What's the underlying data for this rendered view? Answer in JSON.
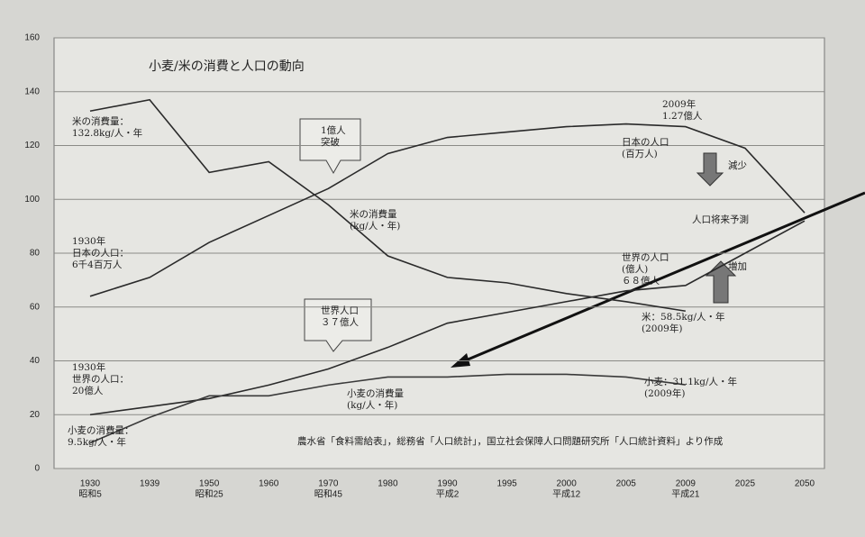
{
  "chart_data": {
    "type": "line",
    "title": "小麦/米の消費と人口の動向",
    "categories": [
      "1930",
      "1939",
      "1950",
      "1960",
      "1970",
      "1980",
      "1990",
      "1995",
      "2000",
      "2005",
      "2009",
      "2025",
      "2050"
    ],
    "category_sublabels": [
      "昭和5",
      null,
      "昭和25",
      null,
      "昭和45",
      null,
      "平成2",
      null,
      "平成12",
      null,
      "平成21",
      null,
      null
    ],
    "ylim": [
      0,
      160
    ],
    "yticks": [
      0,
      20,
      40,
      60,
      80,
      100,
      120,
      140,
      160
    ],
    "grid": true,
    "series": [
      {
        "color": "#2a2a2a",
        "values": [
          132.8,
          137,
          110,
          114,
          98,
          79,
          71,
          69,
          65,
          62,
          58.5,
          null,
          null
        ]
      },
      {
        "color": "#2a2a2a",
        "values": [
          64,
          71,
          84,
          94,
          104,
          117,
          123,
          125,
          127,
          128,
          127,
          119,
          95
        ]
      },
      {
        "color": "#2a2a2a",
        "values": [
          20,
          23,
          26,
          31,
          37,
          45,
          54,
          58,
          62,
          66,
          68,
          80,
          92
        ]
      },
      {
        "color": "#3a3a3a",
        "values": [
          9.5,
          19,
          27,
          27,
          31,
          34,
          34,
          35,
          35,
          34,
          31.1,
          null,
          null
        ]
      }
    ],
    "annotations": [
      {
        "lines": [
          "米の消費量：",
          "132.8kg/人・年"
        ]
      },
      {
        "lines": [
          "1930年",
          "日本の人口：",
          "6千4百万人"
        ]
      },
      {
        "lines": [
          "1930年",
          "世界の人口：",
          "20億人"
        ]
      },
      {
        "lines": [
          "小麦の消費量：",
          "9.5kg/人・年"
        ]
      },
      {
        "lines": [
          "1億人",
          "突破"
        ]
      },
      {
        "lines": [
          "世界人口",
          "３７億人"
        ]
      },
      {
        "lines": [
          "米の消費量",
          "(kg/人・年)"
        ]
      },
      {
        "lines": [
          "小麦の消費量",
          "(kg/人・年)"
        ]
      },
      {
        "lines": [
          "2009年",
          "1.27億人"
        ]
      },
      {
        "lines": [
          "日本の人口",
          "(百万人)"
        ]
      },
      {
        "lines": [
          "減少"
        ]
      },
      {
        "lines": [
          "人口将来予測"
        ]
      },
      {
        "lines": [
          "世界の人口",
          "(億人)",
          "６８億人"
        ]
      },
      {
        "lines": [
          "増加"
        ]
      },
      {
        "lines": [
          "米：58.5kg/人・年",
          "(2009年)"
        ]
      },
      {
        "lines": [
          "小麦：31.1kg/人・年",
          "(2009年)"
        ]
      },
      {
        "lines": [
          "農水省「食料需給表」，総務省「人口統計」，国立社会保障人口問題研究所「人口統計資料」より作成"
        ]
      }
    ]
  }
}
